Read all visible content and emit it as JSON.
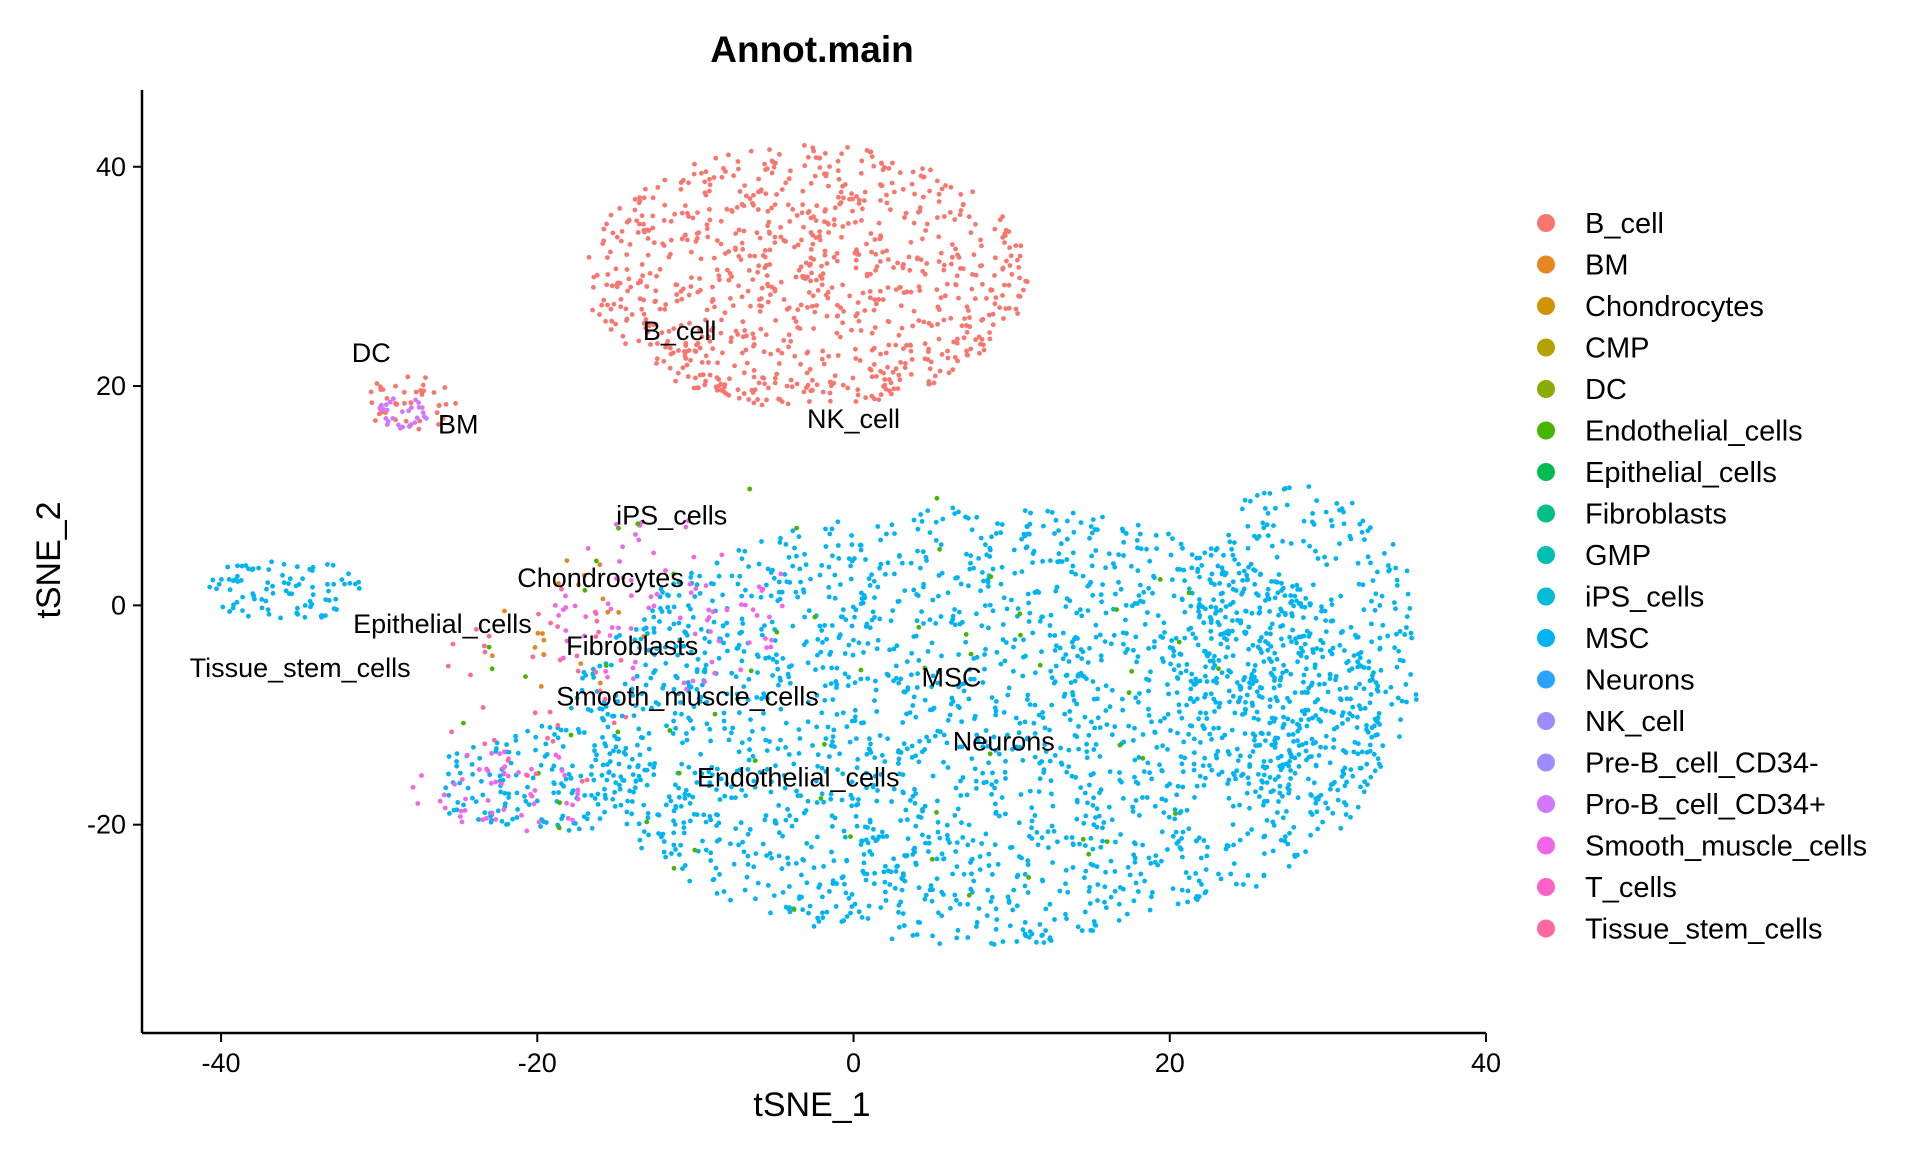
{
  "chart_data": {
    "type": "scatter",
    "title": "Annot.main",
    "xlabel": "tSNE_1",
    "ylabel": "tSNE_2",
    "xlim": [
      -45,
      40
    ],
    "ylim": [
      -39,
      47
    ],
    "xticks": [
      -40,
      -20,
      0,
      20,
      40
    ],
    "yticks": [
      -20,
      0,
      20,
      40
    ],
    "grid": false,
    "legend_position": "right",
    "legend": [
      {
        "name": "B_cell",
        "color": "#F8766D"
      },
      {
        "name": "BM",
        "color": "#E7851E"
      },
      {
        "name": "Chondrocytes",
        "color": "#D09400"
      },
      {
        "name": "CMP",
        "color": "#B2A100"
      },
      {
        "name": "DC",
        "color": "#89AC00"
      },
      {
        "name": "Endothelial_cells",
        "color": "#45B500"
      },
      {
        "name": "Epithelial_cells",
        "color": "#00BC51"
      },
      {
        "name": "Fibroblasts",
        "color": "#00C087"
      },
      {
        "name": "GMP",
        "color": "#00C0B2"
      },
      {
        "name": "iPS_cells",
        "color": "#00BCD6"
      },
      {
        "name": "MSC",
        "color": "#00B3F2"
      },
      {
        "name": "Neurons",
        "color": "#29A3FF"
      },
      {
        "name": "NK_cell",
        "color": "#9C8DFF"
      },
      {
        "name": "Pre-B_cell_CD34-",
        "color": "#9C8DFF"
      },
      {
        "name": "Pro-B_cell_CD34+",
        "color": "#D277FF"
      },
      {
        "name": "Smooth_muscle_cells",
        "color": "#F166E8"
      },
      {
        "name": "T_cells",
        "color": "#FF61C7"
      },
      {
        "name": "Tissue_stem_cells",
        "color": "#FF689E"
      }
    ],
    "cluster_labels": [
      {
        "text": "B_cell",
        "x": -11,
        "y": 25
      },
      {
        "text": "DC",
        "x": -30.5,
        "y": 23
      },
      {
        "text": "BM",
        "x": -25,
        "y": 16.5
      },
      {
        "text": "NK_cell",
        "x": 0,
        "y": 17
      },
      {
        "text": "iPS_cells",
        "x": -11.5,
        "y": 8.2
      },
      {
        "text": "Chondrocytes",
        "x": -16,
        "y": 2.5
      },
      {
        "text": "Epithelial_cells",
        "x": -26,
        "y": -1.7
      },
      {
        "text": "Fibroblasts",
        "x": -14,
        "y": -3.7
      },
      {
        "text": "Tissue_stem_cells",
        "x": -35,
        "y": -5.7
      },
      {
        "text": "MSC",
        "x": 6.2,
        "y": -6.6
      },
      {
        "text": "Smooth_muscle_cells",
        "x": -10.5,
        "y": -8.3
      },
      {
        "text": "Neurons",
        "x": 9.5,
        "y": -12.4
      },
      {
        "text": "Endothelial_cells",
        "x": -3.5,
        "y": -15.7
      }
    ],
    "clusters": [
      {
        "color": "#F8766D",
        "cx": -3,
        "cy": 30,
        "rx": 14,
        "ry": 12,
        "n": 900
      },
      {
        "color": "#00B3F2",
        "cx": 8,
        "cy": -11,
        "rx": 26,
        "ry": 20,
        "n": 2100
      },
      {
        "color": "#00B3F2",
        "cx": 28,
        "cy": -4,
        "rx": 8,
        "ry": 15,
        "n": 450
      },
      {
        "color": "#00B3F2",
        "cx": -36,
        "cy": 1.5,
        "rx": 5,
        "ry": 3,
        "n": 90
      },
      {
        "color": "#00B3F2",
        "cx": -20,
        "cy": -16,
        "rx": 7,
        "ry": 5,
        "n": 150
      },
      {
        "color": "#F8766D",
        "cx": -28,
        "cy": 18.5,
        "rx": 3,
        "ry": 2.5,
        "n": 40
      },
      {
        "color": "#D277FF",
        "cx": -28.5,
        "cy": 17.5,
        "rx": 1.6,
        "ry": 1.5,
        "n": 30
      },
      {
        "color": "#F166E8",
        "cx": -12,
        "cy": 0,
        "rx": 8,
        "ry": 8,
        "n": 80
      },
      {
        "color": "#F166E8",
        "cx": -22,
        "cy": -17,
        "rx": 6,
        "ry": 4,
        "n": 55
      },
      {
        "color": "#45B500",
        "cx": 0,
        "cy": -8,
        "rx": 25,
        "ry": 20,
        "n": 60
      },
      {
        "color": "#FF689E",
        "cx": -20,
        "cy": -8,
        "rx": 6,
        "ry": 10,
        "n": 40
      },
      {
        "color": "#E7851E",
        "cx": -18,
        "cy": -3,
        "rx": 6,
        "ry": 8,
        "n": 20
      }
    ]
  }
}
